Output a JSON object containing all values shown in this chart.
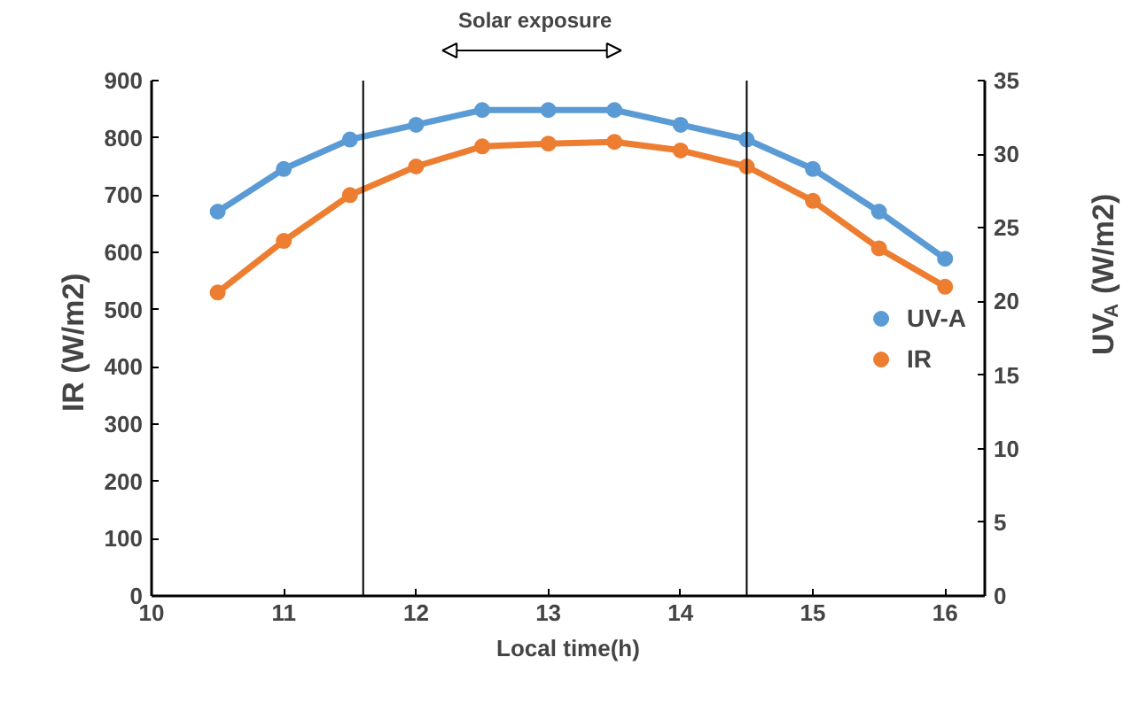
{
  "chart_data": {
    "type": "line",
    "xlabel": "Local time(h)",
    "ylabel": "IR  (W/m2)",
    "y2label": "UV$_{A}$ (W/m2)",
    "annotations": [
      "Solar exposure"
    ],
    "series": [
      {
        "name": "UV-A",
        "color": "#5b9bd5",
        "axis": "y2",
        "x": [
          10.5,
          11,
          11.5,
          12,
          12.5,
          13,
          13.5,
          14,
          14.5,
          15,
          15.5,
          16
        ],
        "values": [
          26.1,
          29.0,
          31.0,
          32.0,
          33.0,
          33.0,
          33.0,
          32.0,
          31.0,
          29.0,
          26.1,
          22.9
        ]
      },
      {
        "name": "IR",
        "color": "#ed7d31",
        "x": [
          10.5,
          11,
          11.5,
          12,
          12.5,
          13,
          13.5,
          14,
          14.5,
          15,
          15.5,
          16
        ],
        "values": [
          530,
          620,
          700,
          750,
          785,
          790,
          793,
          778,
          750,
          690,
          607,
          540
        ]
      }
    ],
    "xlim": [
      10,
      16.3
    ],
    "xticks": [
      10,
      11,
      12,
      13,
      14,
      15,
      16
    ],
    "ylim": [
      0,
      900
    ],
    "yticks": [
      0,
      100,
      200,
      300,
      400,
      500,
      600,
      700,
      800,
      900
    ],
    "y2lim": [
      0,
      35
    ],
    "y2ticks": [
      0,
      5,
      10,
      15,
      20,
      25,
      30,
      35
    ],
    "ref_lines": [
      {
        "axis": "x",
        "value": 11.6,
        "color": "#000000"
      },
      {
        "axis": "x",
        "value": 14.5,
        "color": "#000000"
      }
    ],
    "marker": "circle",
    "line_style": "solid",
    "grid": false,
    "legend": "right"
  }
}
